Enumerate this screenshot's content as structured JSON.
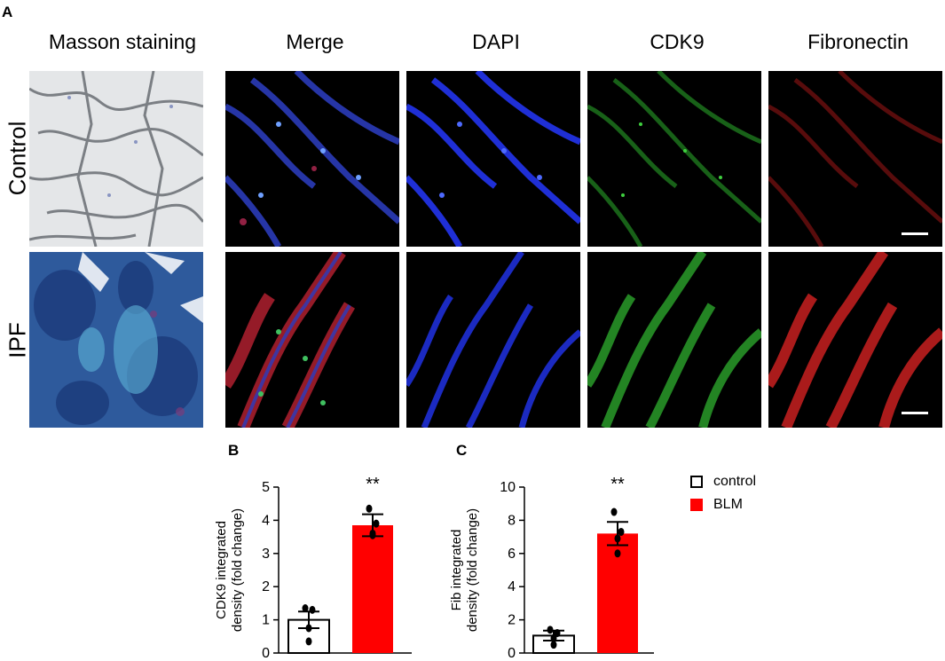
{
  "panel_a": {
    "letter": "A",
    "columns": [
      "Masson staining",
      "Merge",
      "DAPI",
      "CDK9",
      "Fibronectin"
    ],
    "rows": [
      "Control",
      "IPF"
    ]
  },
  "panel_b": {
    "letter": "B"
  },
  "panel_c": {
    "letter": "C"
  },
  "legend": {
    "items": [
      {
        "label": "control",
        "color": "#ffffff"
      },
      {
        "label": "BLM",
        "color": "#ff0000"
      }
    ]
  },
  "chart_data": [
    {
      "type": "bar",
      "categories": [
        "control",
        "BLM"
      ],
      "values": [
        1.0,
        3.85
      ],
      "errors": [
        0.25,
        0.33
      ],
      "points": [
        [
          1.35,
          1.3,
          0.75,
          0.35
        ],
        [
          4.35,
          3.9,
          3.6,
          3.55
        ]
      ],
      "ylabel": "CDK9 integrated density (fold change)",
      "ylim": [
        0,
        5
      ],
      "yticks": [
        0,
        1,
        2,
        3,
        4,
        5
      ],
      "significance": "**",
      "colors": [
        "#ffffff",
        "#ff0000"
      ]
    },
    {
      "type": "bar",
      "categories": [
        "control",
        "BLM"
      ],
      "values": [
        1.05,
        7.2
      ],
      "errors": [
        0.3,
        0.7
      ],
      "points": [
        [
          1.4,
          1.2,
          0.9,
          0.5
        ],
        [
          8.5,
          7.3,
          6.9,
          6.0
        ]
      ],
      "ylabel": "Fib integrated density (fold change)",
      "ylim": [
        0,
        10
      ],
      "yticks": [
        0,
        2,
        4,
        6,
        8,
        10
      ],
      "significance": "**",
      "colors": [
        "#ffffff",
        "#ff0000"
      ]
    }
  ]
}
